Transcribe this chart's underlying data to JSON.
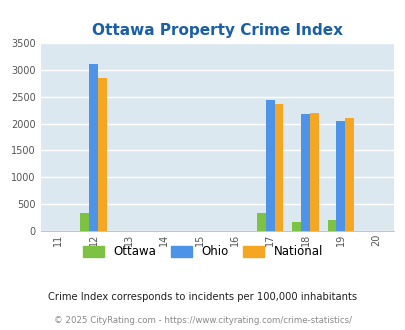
{
  "title": "Ottawa Property Crime Index",
  "years": [
    2011,
    2012,
    2013,
    2014,
    2015,
    2016,
    2017,
    2018,
    2019,
    2020
  ],
  "xlim": [
    2010.5,
    2020.5
  ],
  "ylim": [
    0,
    3500
  ],
  "yticks": [
    0,
    500,
    1000,
    1500,
    2000,
    2500,
    3000,
    3500
  ],
  "bar_data": {
    "2012": {
      "ottawa": 330,
      "ohio": 3100,
      "national": 2850
    },
    "2017": {
      "ottawa": 330,
      "ohio": 2430,
      "national": 2370
    },
    "2018": {
      "ottawa": 160,
      "ohio": 2180,
      "national": 2200
    },
    "2019": {
      "ottawa": 200,
      "ohio": 2050,
      "national": 2100
    }
  },
  "color_ottawa": "#7dc242",
  "color_ohio": "#4d94e8",
  "color_national": "#f5a623",
  "background_color": "#dce8f0",
  "grid_color": "#ffffff",
  "title_color": "#1a5faa",
  "title_fontsize": 11,
  "bar_width": 0.25,
  "legend_labels": [
    "Ottawa",
    "Ohio",
    "National"
  ],
  "footnote1": "Crime Index corresponds to incidents per 100,000 inhabitants",
  "footnote2": "© 2025 CityRating.com - https://www.cityrating.com/crime-statistics/",
  "footnote1_color": "#222222",
  "footnote2_color": "#888888",
  "tick_label_fontsize": 7,
  "ytick_label_fontsize": 7
}
